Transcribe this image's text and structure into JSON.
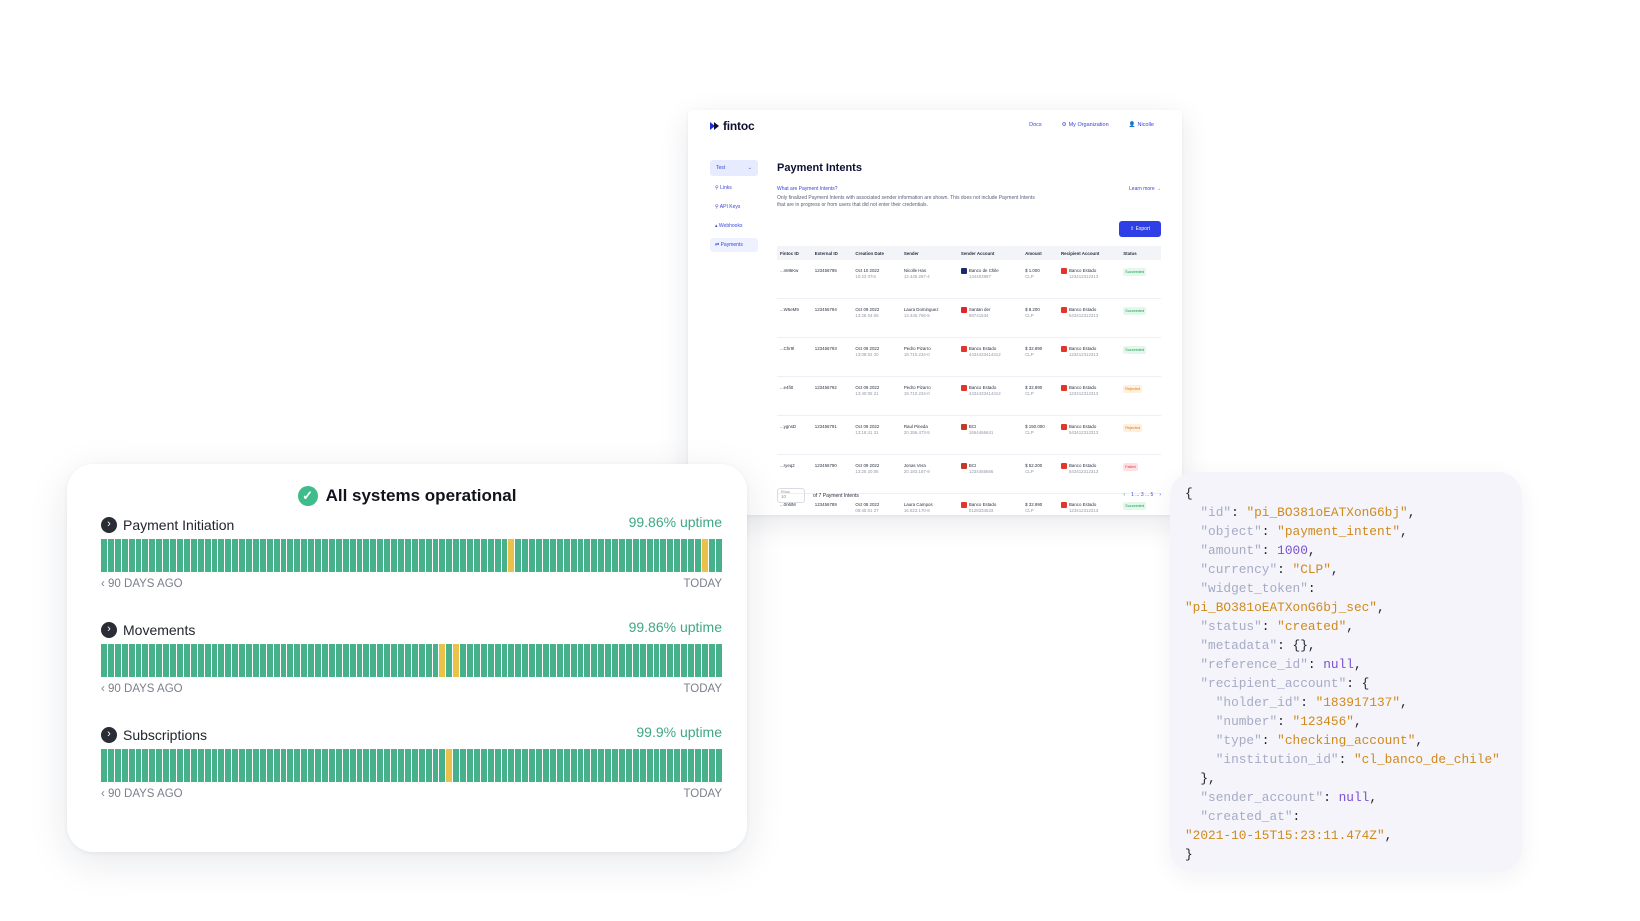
{
  "dashboard": {
    "brand": "fintoc",
    "topnav": [
      "Docs",
      "My Organization",
      "Nicolle"
    ],
    "env": "Test",
    "sidebar": [
      "Links",
      "API Keys",
      "Webhooks",
      "Payments"
    ],
    "title": "Payment Intents",
    "what_link": "What are Payment Intents?",
    "learn_link": "Learn more →",
    "description": "Only finalized Payment Intents with associated sender information are shown. This does not include Payment Intents that are in progress or from users that did not enter their credentials.",
    "export_label": "Export",
    "columns": [
      "Fintoc ID",
      "External ID",
      "Creation Date",
      "Sender",
      "Sender Account",
      "Amount",
      "Recipient Account",
      "Status"
    ],
    "rows": [
      {
        "id": "...nM6Kw",
        "ext": "123456795",
        "date": "Oct 10 2022",
        "time": "10:23 07m",
        "sender": "Nicolle Has",
        "rut": "12.445.287-4",
        "sbank": "Banco de Chile",
        "sacc": "134403987",
        "amount": "$ 1.000",
        "cur": "CLP",
        "rbank": "Banco Estado",
        "racc": "123412312313",
        "status": "Succeeded"
      },
      {
        "id": "...W5eM9",
        "ext": "123456794",
        "date": "Oct 09 2022",
        "time": "13:28 04:06",
        "sender": "Laura Dominguez",
        "rut": "13.445.766-5",
        "sbank": "Santan der",
        "sacc": "98741534",
        "amount": "$ 8.200",
        "cur": "CLP",
        "rbank": "Banco Estado",
        "racc": "543412312313",
        "status": "Succeeded"
      },
      {
        "id": "...Chr9l",
        "ext": "123456793",
        "date": "Oct 09 2022",
        "time": "13:08:02 20",
        "sender": "Pedro Pizarro",
        "rut": "19.710.234-0",
        "sbank": "Banco Estado",
        "sacc": "4434433414412",
        "amount": "$ 32.890",
        "cur": "CLP",
        "rbank": "Banco Estado",
        "racc": "123412312313",
        "status": "Succeeded"
      },
      {
        "id": "...e4fi0",
        "ext": "123456792",
        "date": "Oct 09 2022",
        "time": "13:40:05 21",
        "sender": "Pedro Pizarro",
        "rut": "19.710.234-0",
        "sbank": "Banco Estado",
        "sacc": "4434433414412",
        "amount": "$ 32.890",
        "cur": "CLP",
        "rbank": "Banco Estado",
        "racc": "123412312313",
        "status": "Rejected"
      },
      {
        "id": "...ygnsD",
        "ext": "123456791",
        "date": "Oct 09 2022",
        "time": "13:16:41 21",
        "sender": "Raul Pineda",
        "rut": "20.356.473-5",
        "sbank": "BCI",
        "sacc": "1664466641",
        "amount": "$ 150.000",
        "cur": "CLP",
        "rbank": "Banco Estado",
        "racc": "543412312313",
        "status": "Rejected"
      },
      {
        "id": "...ryeq2",
        "ext": "123456790",
        "date": "Oct 09 2022",
        "time": "13:25 20:06",
        "sender": "Jonas Vera",
        "rut": "20.183.187-9",
        "sbank": "BCI",
        "sacc": "1234456666",
        "amount": "$ 52.200",
        "cur": "CLP",
        "rbank": "Banco Estado",
        "racc": "543412312313",
        "status": "Failed"
      },
      {
        "id": "...0n6lM",
        "ext": "123456789",
        "date": "Oct 08 2022",
        "time": "09:45:01 27",
        "sender": "Laura Campos",
        "rut": "16.823.170-8",
        "sbank": "Banco Estado",
        "sacc": "0128334533",
        "amount": "$ 32.990",
        "cur": "CLP",
        "rbank": "Banco Estado",
        "racc": "123412312313",
        "status": "Succeeded"
      }
    ],
    "rows_label": "Rows",
    "rows_value": "10",
    "count_label": "of 7 Payment Intents",
    "pages": "1 ... 3 ... 5"
  },
  "status": {
    "title": "All systems operational",
    "left_label": "90 DAYS AGO",
    "right_label": "TODAY",
    "services": [
      {
        "name": "Payment Initiation",
        "uptime": "99.86% uptime",
        "incident_days": [
          59,
          87
        ]
      },
      {
        "name": "Movements",
        "uptime": "99.86% uptime",
        "incident_days": [
          49,
          51
        ]
      },
      {
        "name": "Subscriptions",
        "uptime": "99.9% uptime",
        "incident_days": [
          50
        ]
      }
    ]
  },
  "json_lines": [
    [
      [
        "p",
        "{"
      ]
    ],
    [
      [
        "p",
        "  "
      ],
      [
        "k",
        "\"id\""
      ],
      [
        "p",
        ": "
      ],
      [
        "s",
        "\"pi_BO381oEATXonG6bj\""
      ],
      [
        "p",
        ","
      ]
    ],
    [
      [
        "p",
        "  "
      ],
      [
        "k",
        "\"object\""
      ],
      [
        "p",
        ": "
      ],
      [
        "s",
        "\"payment_intent\""
      ],
      [
        "p",
        ","
      ]
    ],
    [
      [
        "p",
        "  "
      ],
      [
        "k",
        "\"amount\""
      ],
      [
        "p",
        ": "
      ],
      [
        "n",
        "1000"
      ],
      [
        "p",
        ","
      ]
    ],
    [
      [
        "p",
        "  "
      ],
      [
        "k",
        "\"currency\""
      ],
      [
        "p",
        ": "
      ],
      [
        "s",
        "\"CLP\""
      ],
      [
        "p",
        ","
      ]
    ],
    [
      [
        "p",
        "  "
      ],
      [
        "k",
        "\"widget_token\""
      ],
      [
        "p",
        ":"
      ]
    ],
    [
      [
        "s",
        "\"pi_BO381oEATXonG6bj_sec\""
      ],
      [
        "p",
        ","
      ]
    ],
    [
      [
        "p",
        "  "
      ],
      [
        "k",
        "\"status\""
      ],
      [
        "p",
        ": "
      ],
      [
        "s",
        "\"created\""
      ],
      [
        "p",
        ","
      ]
    ],
    [
      [
        "p",
        "  "
      ],
      [
        "k",
        "\"metadata\""
      ],
      [
        "p",
        ": {},"
      ]
    ],
    [
      [
        "p",
        "  "
      ],
      [
        "k",
        "\"reference_id\""
      ],
      [
        "p",
        ": "
      ],
      [
        "n",
        "null"
      ],
      [
        "p",
        ","
      ]
    ],
    [
      [
        "p",
        "  "
      ],
      [
        "k",
        "\"recipient_account\""
      ],
      [
        "p",
        ": {"
      ]
    ],
    [
      [
        "p",
        "    "
      ],
      [
        "k",
        "\"holder_id\""
      ],
      [
        "p",
        ": "
      ],
      [
        "s",
        "\"183917137\""
      ],
      [
        "p",
        ","
      ]
    ],
    [
      [
        "p",
        "    "
      ],
      [
        "k",
        "\"number\""
      ],
      [
        "p",
        ": "
      ],
      [
        "s",
        "\"123456\""
      ],
      [
        "p",
        ","
      ]
    ],
    [
      [
        "p",
        "    "
      ],
      [
        "k",
        "\"type\""
      ],
      [
        "p",
        ": "
      ],
      [
        "s",
        "\"checking_account\""
      ],
      [
        "p",
        ","
      ]
    ],
    [
      [
        "p",
        "    "
      ],
      [
        "k",
        "\"institution_id\""
      ],
      [
        "p",
        ": "
      ],
      [
        "s",
        "\"cl_banco_de_chile\""
      ]
    ],
    [
      [
        "p",
        "  },"
      ]
    ],
    [
      [
        "p",
        "  "
      ],
      [
        "k",
        "\"sender_account\""
      ],
      [
        "p",
        ": "
      ],
      [
        "n",
        "null"
      ],
      [
        "p",
        ","
      ]
    ],
    [
      [
        "p",
        "  "
      ],
      [
        "k",
        "\"created_at\""
      ],
      [
        "p",
        ":"
      ]
    ],
    [
      [
        "s",
        "\"2021-10-15T15:23:11.474Z\""
      ],
      [
        "p",
        ","
      ]
    ],
    [
      [
        "p",
        "}"
      ]
    ]
  ],
  "colors": {
    "brand": "#2f3fe6",
    "up": "#46b18a",
    "incident": "#e9c24c"
  }
}
